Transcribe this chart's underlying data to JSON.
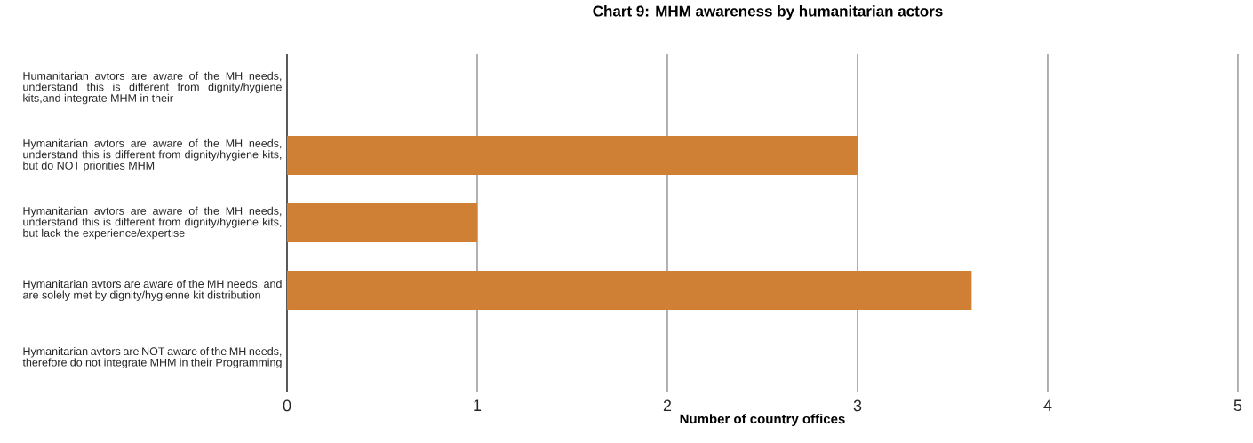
{
  "chart_data": {
    "type": "bar",
    "orientation": "horizontal",
    "title": "Chart 9: MHM awareness by humanitarian actors",
    "xlabel": "Number of country offices",
    "categories": [
      "Humanitarian avtors are aware of the MH needs, understand this is different from dignity/hygiene kits,and integrate MHM in their",
      "Hymanitarian avtors are aware of the MH needs, understand this is different from dignity/hygiene kits, but do NOT priorities MHM",
      "Hymanitarian avtors are aware of the MH needs, understand this is different from dignity/hygiene kits, but lack the experience/expertise",
      "Hymanitarian avtors are aware of the MH needs, and are solely met by dignity/hygienne kit distribution",
      "Hymanitarian avtors are NOT aware of the MH needs, therefore do not integrate MHM in their Programming"
    ],
    "values": [
      0,
      3,
      1,
      3.6,
      0
    ],
    "color": "#cf8035",
    "xlim": [
      0,
      5
    ],
    "xticks": [
      0,
      1,
      2,
      3,
      4,
      5
    ],
    "grid": "x"
  }
}
